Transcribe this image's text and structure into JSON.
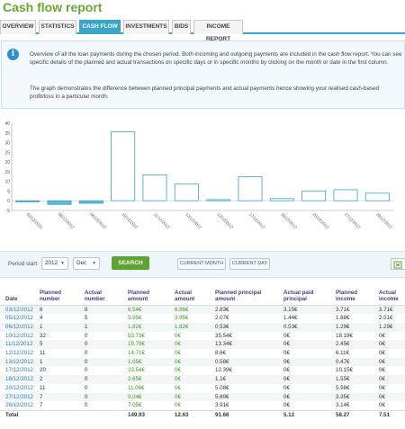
{
  "title": "Cash flow report",
  "tabs": [
    {
      "label": "OVERVIEW",
      "active": false
    },
    {
      "label": "STATISTICS",
      "active": false
    },
    {
      "label": "CASH FLOW",
      "active": true
    },
    {
      "label": "INVESTMENTS",
      "active": false
    },
    {
      "label": "BIDS",
      "active": false
    },
    {
      "label": "INCOME REPORT",
      "active": false
    }
  ],
  "info": {
    "icon": "info-icon",
    "p1": "Overview of all the loan payments during the chosen period. Both incoming and outgoing payments are included in the cash flow report. You can see specific details of the planned and actual transactions on specific days or in specific months by clicking on the month or date in the first column.",
    "p2": "The graph demonstrates the difference between planned principal payments and actual payments hence showing your realised cash-based profit/loss in a particular month."
  },
  "chart_data": {
    "type": "bar",
    "yticks": [
      "40",
      "35",
      "30",
      "25",
      "20",
      "15",
      "10",
      "5",
      "0",
      "-5"
    ],
    "ylim": [
      -5,
      40
    ],
    "categories": [
      "03/12/2012",
      "05/12/2012",
      "06/12/2012",
      "10/12/2012",
      "11/12/2012",
      "12/12/2012",
      "13/12/2012",
      "17/12/2012",
      "18/12/2012",
      "20/12/2012",
      "27/12/2012",
      "28/12/2012"
    ],
    "series": [
      {
        "values": [
          -0.56,
          -1.89,
          -1.29,
          35.54,
          13.34,
          8.6,
          0.58,
          12.39,
          1.1,
          5.08,
          5.69,
          3.91
        ]
      }
    ],
    "filled_categories": [
      "03/12/2012",
      "05/12/2012",
      "06/12/2012"
    ],
    "colors": {
      "fill": "#63b9d8",
      "outline": "#3a9fc4",
      "axis": "#999999"
    }
  },
  "controls": {
    "period_label": "Period start",
    "year": "2012",
    "month": "Dec",
    "search_label": "SEARCH",
    "current_month_label": "CURRENT MONTH",
    "current_day_label": "CURRENT DAY",
    "export_icon": "excel-export-icon"
  },
  "table": {
    "headers": [
      "Date",
      "Planned number",
      "Actual number",
      "Planned amount",
      "Actual amount",
      "Planned principal amount",
      "Actual paid principal",
      "Planned income",
      "Actual income"
    ],
    "rows": [
      [
        "03/12/2012",
        "6",
        "8",
        "6.54€",
        "6.86€",
        "2.83€",
        "3.15€",
        "3.71€",
        "3.71€"
      ],
      [
        "05/12/2012",
        "4",
        "5",
        "3.95€",
        "3.95€",
        "2.07€",
        "1.44€",
        "1.88€",
        "2.51€"
      ],
      [
        "06/12/2012",
        "1",
        "1",
        "1.82€",
        "1.82€",
        "0.53€",
        "0.53€",
        "1.29€",
        "1.29€"
      ],
      [
        "10/12/2012",
        "32",
        "0",
        "53.73€",
        "0€",
        "35.54€",
        "0€",
        "18.19€",
        "0€"
      ],
      [
        "11/12/2012",
        "5",
        "0",
        "15.79€",
        "0€",
        "13.34€",
        "0€",
        "2.45€",
        "0€"
      ],
      [
        "12/12/2012",
        "11",
        "0",
        "14.71€",
        "0€",
        "8.6€",
        "0€",
        "6.11€",
        "0€"
      ],
      [
        "13/12/2012",
        "1",
        "0",
        "1.05€",
        "0€",
        "0.58€",
        "0€",
        "0.47€",
        "0€"
      ],
      [
        "17/12/2012",
        "20",
        "0",
        "22.54€",
        "0€",
        "12.39€",
        "0€",
        "10.15€",
        "0€"
      ],
      [
        "18/12/2012",
        "2",
        "0",
        "2.65€",
        "0€",
        "1.1€",
        "0€",
        "1.55€",
        "0€"
      ],
      [
        "20/12/2012",
        "11",
        "0",
        "11.06€",
        "0€",
        "5.08€",
        "0€",
        "5.98€",
        "0€"
      ],
      [
        "27/12/2012",
        "7",
        "0",
        "9.04€",
        "0€",
        "5.69€",
        "0€",
        "3.35€",
        "0€"
      ],
      [
        "28/12/2012",
        "7",
        "0",
        "7.05€",
        "0€",
        "3.91€",
        "0€",
        "3.14€",
        "0€"
      ]
    ],
    "total": [
      "Total",
      "",
      "",
      "149.93",
      "12.63",
      "91.66",
      "5.12",
      "58.27",
      "7.51"
    ]
  }
}
